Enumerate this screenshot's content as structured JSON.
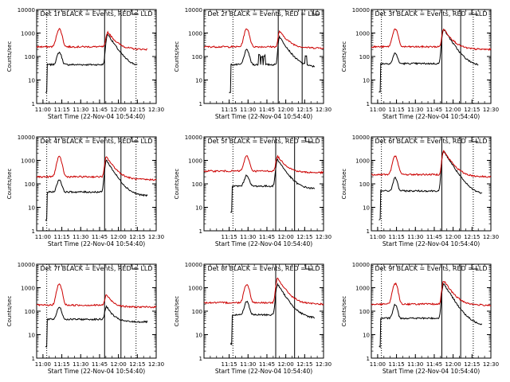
{
  "figure": {
    "background": "#ffffff",
    "axis_color": "#000000",
    "event_color": "#000000",
    "lld_color": "#cc0000"
  },
  "chart_data": [
    {
      "type": "line",
      "title": "Det 1f BLACK = Events, RED = LLD",
      "xlabel": "Start Time (22-Nov-04 10:54:40)",
      "ylabel": "Counts/sec",
      "xlim_min": [
        0,
        95
      ],
      "ylim": [
        1,
        10000
      ],
      "yscale": "log",
      "x_ticks": [
        {
          "label": "11:00",
          "v": 5
        },
        {
          "label": "11:15",
          "v": 20
        },
        {
          "label": "11:30",
          "v": 35
        },
        {
          "label": "11:45",
          "v": 50
        },
        {
          "label": "12:00",
          "v": 65
        },
        {
          "label": "12:15",
          "v": 80
        },
        {
          "label": "12:30",
          "v": 95
        }
      ],
      "y_ticks": [
        {
          "label": "1",
          "v": 1
        },
        {
          "label": "10",
          "v": 10
        },
        {
          "label": "100",
          "v": 100
        },
        {
          "label": "1000",
          "v": 1000
        },
        {
          "label": "10000",
          "v": 10000
        }
      ],
      "markers_min": {
        "dotted": [
          8,
          79
        ],
        "solid": [
          54,
          67
        ]
      },
      "series": [
        {
          "name": "Events",
          "color": "#000000",
          "start": 7,
          "end": 80,
          "base": 45,
          "tail": 35,
          "peak1": {
            "t": 18,
            "v": 150,
            "w": 2.2
          },
          "peak2": {
            "t": 56.5,
            "v": 900,
            "r": 1.5,
            "d": 5
          },
          "dropout": 3
        },
        {
          "name": "LLD",
          "color": "#cc0000",
          "start": 0,
          "end": 88,
          "base": 260,
          "tail": 200,
          "peak1": {
            "t": 18,
            "v": 1500,
            "w": 2.4
          },
          "peak2": {
            "t": 56.5,
            "v": 1100,
            "r": 1.5,
            "d": 5
          },
          "dropout": 0
        }
      ]
    },
    {
      "type": "line",
      "title": "Det 2f BLACK = Events, RED = LLD",
      "xlabel": "Start Time (22-Nov-04 10:54:40)",
      "ylabel": "Counts/sec",
      "xlim_min": [
        0,
        95
      ],
      "ylim": [
        1,
        10000
      ],
      "yscale": "log",
      "x_ticks": [
        {
          "label": "11:30",
          "v": 35
        },
        {
          "label": "11:45",
          "v": 50
        },
        {
          "label": "12:00",
          "v": 65
        },
        {
          "label": "12:15",
          "v": 80
        },
        {
          "label": "12:30",
          "v": 95
        },
        {
          "label": "11:15",
          "v": 20
        }
      ],
      "y_ticks": [
        {
          "label": "1",
          "v": 1
        },
        {
          "label": "10",
          "v": 10
        },
        {
          "label": "100",
          "v": 100
        },
        {
          "label": "1000",
          "v": 1000
        },
        {
          "label": "10000",
          "v": 10000
        }
      ],
      "markers_min": {
        "dotted": [
          23
        ],
        "solid": [
          59,
          78
        ]
      },
      "series": [
        {
          "name": "Events",
          "color": "#000000",
          "start": 20,
          "end": 88,
          "base": 45,
          "tail": 35,
          "peak1": {
            "t": 34,
            "v": 190,
            "w": 2.3
          },
          "peak2": {
            "t": 60,
            "v": 700,
            "r": 1.2,
            "d": 5
          },
          "dropout": 3,
          "spikes": [
            {
              "t": 44,
              "v": 120
            },
            {
              "t": 46,
              "v": 100
            },
            {
              "t": 48,
              "v": 110
            },
            {
              "t": 81,
              "v": 110
            }
          ]
        },
        {
          "name": "LLD",
          "color": "#cc0000",
          "start": 0,
          "end": 95,
          "base": 260,
          "tail": 230,
          "peak1": {
            "t": 34,
            "v": 1500,
            "w": 2.4
          },
          "peak2": {
            "t": 60,
            "v": 1200,
            "r": 1.2,
            "d": 5
          },
          "dropout": 0
        }
      ]
    },
    {
      "type": "line",
      "title": "Det 3f BLACK = Events, RED = LLD",
      "xlabel": "Start Time (22-Nov-04 10:54:40)",
      "ylabel": "Counts/sec",
      "xlim_min": [
        0,
        95
      ],
      "ylim": [
        1,
        10000
      ],
      "yscale": "log",
      "x_ticks": [
        {
          "label": "11:00",
          "v": 5
        },
        {
          "label": "11:15",
          "v": 20
        },
        {
          "label": "11:30",
          "v": 35
        },
        {
          "label": "11:45",
          "v": 50
        },
        {
          "label": "12:00",
          "v": 65
        },
        {
          "label": "12:15",
          "v": 80
        },
        {
          "label": "12:30",
          "v": 95
        }
      ],
      "y_ticks": [
        {
          "label": "1",
          "v": 1
        },
        {
          "label": "10",
          "v": 10
        },
        {
          "label": "100",
          "v": 100
        },
        {
          "label": "1000",
          "v": 1000
        },
        {
          "label": "10000",
          "v": 10000
        }
      ],
      "markers_min": {
        "dotted": [
          8,
          81
        ],
        "solid": [
          56,
          71
        ]
      },
      "series": [
        {
          "name": "Events",
          "color": "#000000",
          "start": 6,
          "end": 85,
          "base": 50,
          "tail": 40,
          "peak1": {
            "t": 19,
            "v": 140,
            "w": 2.0
          },
          "peak2": {
            "t": 57.5,
            "v": 1500,
            "r": 1.5,
            "d": 5
          },
          "dropout": 3
        },
        {
          "name": "LLD",
          "color": "#cc0000",
          "start": 0,
          "end": 95,
          "base": 260,
          "tail": 200,
          "peak1": {
            "t": 19,
            "v": 1500,
            "w": 2.4
          },
          "peak2": {
            "t": 57.5,
            "v": 1500,
            "r": 1.5,
            "d": 5
          },
          "dropout": 0
        }
      ]
    },
    {
      "type": "line",
      "title": "Det 4f BLACK = Events, RED = LLD",
      "xlabel": "Start Time (22-Nov-04 10:54:40)",
      "ylabel": "Counts/sec",
      "xlim_min": [
        0,
        95
      ],
      "ylim": [
        1,
        10000
      ],
      "yscale": "log",
      "x_ticks": [
        {
          "label": "11:00",
          "v": 5
        },
        {
          "label": "11:15",
          "v": 20
        },
        {
          "label": "11:30",
          "v": 35
        },
        {
          "label": "11:45",
          "v": 50
        },
        {
          "label": "12:00",
          "v": 65
        },
        {
          "label": "12:15",
          "v": 80
        },
        {
          "label": "12:30",
          "v": 95
        }
      ],
      "y_ticks": [
        {
          "label": "1",
          "v": 1
        },
        {
          "label": "10",
          "v": 10
        },
        {
          "label": "100",
          "v": 100
        },
        {
          "label": "1000",
          "v": 1000
        },
        {
          "label": "10000",
          "v": 10000
        }
      ],
      "markers_min": {
        "dotted": [
          8,
          79
        ],
        "solid": [
          54,
          67
        ]
      },
      "series": [
        {
          "name": "Events",
          "color": "#000000",
          "start": 7,
          "end": 88,
          "base": 45,
          "tail": 30,
          "peak1": {
            "t": 18,
            "v": 150,
            "w": 2.2
          },
          "peak2": {
            "t": 55.5,
            "v": 1000,
            "r": 1.5,
            "d": 5
          },
          "dropout": 3
        },
        {
          "name": "LLD",
          "color": "#cc0000",
          "start": 0,
          "end": 95,
          "base": 200,
          "tail": 150,
          "peak1": {
            "t": 18,
            "v": 1400,
            "w": 2.4
          },
          "peak2": {
            "t": 55.5,
            "v": 1400,
            "r": 1.5,
            "d": 5
          },
          "dropout": 0
        }
      ]
    },
    {
      "type": "line",
      "title": "Det 5f BLACK = Events, RED = LLD",
      "xlabel": "Start Time (22-Nov-04 10:54:40)",
      "ylabel": "Counts/sec",
      "xlim_min": [
        0,
        95
      ],
      "ylim": [
        1,
        10000
      ],
      "yscale": "log",
      "x_ticks": [
        {
          "label": "11:30",
          "v": 35
        },
        {
          "label": "11:45",
          "v": 50
        },
        {
          "label": "12:00",
          "v": 65
        },
        {
          "label": "12:15",
          "v": 80
        },
        {
          "label": "12:30",
          "v": 95
        },
        {
          "label": "11:15",
          "v": 20
        }
      ],
      "y_ticks": [
        {
          "label": "1",
          "v": 1
        },
        {
          "label": "10",
          "v": 10
        },
        {
          "label": "100",
          "v": 100
        },
        {
          "label": "1000",
          "v": 1000
        },
        {
          "label": "10000",
          "v": 10000
        }
      ],
      "markers_min": {
        "dotted": [
          23
        ],
        "solid": [
          57,
          72
        ]
      },
      "series": [
        {
          "name": "Events",
          "color": "#000000",
          "start": 21,
          "end": 88,
          "base": 80,
          "tail": 60,
          "peak1": {
            "t": 34,
            "v": 230,
            "w": 2.2
          },
          "peak2": {
            "t": 58.5,
            "v": 1100,
            "r": 1.5,
            "d": 5
          },
          "dropout": 6
        },
        {
          "name": "LLD",
          "color": "#cc0000",
          "start": 0,
          "end": 95,
          "base": 350,
          "tail": 300,
          "peak1": {
            "t": 34,
            "v": 1500,
            "w": 2.4
          },
          "peak2": {
            "t": 58.5,
            "v": 1500,
            "r": 1.5,
            "d": 5
          },
          "dropout": 0
        }
      ]
    },
    {
      "type": "line",
      "title": "Det 6f BLACK = Events, RED = LLD",
      "xlabel": "Start Time (22-Nov-04 10:54:40)",
      "ylabel": "Counts/sec",
      "xlim_min": [
        0,
        95
      ],
      "ylim": [
        1,
        10000
      ],
      "yscale": "log",
      "x_ticks": [
        {
          "label": "11:00",
          "v": 5
        },
        {
          "label": "11:15",
          "v": 20
        },
        {
          "label": "11:30",
          "v": 35
        },
        {
          "label": "11:45",
          "v": 50
        },
        {
          "label": "12:00",
          "v": 65
        },
        {
          "label": "12:15",
          "v": 80
        },
        {
          "label": "12:30",
          "v": 95
        }
      ],
      "y_ticks": [
        {
          "label": "1",
          "v": 1
        },
        {
          "label": "10",
          "v": 10
        },
        {
          "label": "100",
          "v": 100
        },
        {
          "label": "1000",
          "v": 1000
        },
        {
          "label": "10000",
          "v": 10000
        }
      ],
      "markers_min": {
        "dotted": [
          8,
          81
        ],
        "solid": [
          56,
          71
        ]
      },
      "series": [
        {
          "name": "Events",
          "color": "#000000",
          "start": 6,
          "end": 88,
          "base": 50,
          "tail": 35,
          "peak1": {
            "t": 19,
            "v": 180,
            "w": 2.0
          },
          "peak2": {
            "t": 57.5,
            "v": 2500,
            "r": 1.5,
            "d": 5
          },
          "dropout": 3
        },
        {
          "name": "LLD",
          "color": "#cc0000",
          "start": 0,
          "end": 95,
          "base": 250,
          "tail": 200,
          "peak1": {
            "t": 19,
            "v": 1500,
            "w": 2.4
          },
          "peak2": {
            "t": 57.5,
            "v": 2500,
            "r": 1.5,
            "d": 5
          },
          "dropout": 0
        }
      ]
    },
    {
      "type": "line",
      "title": "Det 7f BLACK = Events, RED = LLD",
      "xlabel": "Start Time (22-Nov-04 10:54:40)",
      "ylabel": "Counts/sec",
      "xlim_min": [
        0,
        95
      ],
      "ylim": [
        1,
        10000
      ],
      "yscale": "log",
      "x_ticks": [
        {
          "label": "11:00",
          "v": 5
        },
        {
          "label": "11:15",
          "v": 20
        },
        {
          "label": "11:30",
          "v": 35
        },
        {
          "label": "11:45",
          "v": 50
        },
        {
          "label": "12:00",
          "v": 65
        },
        {
          "label": "12:15",
          "v": 80
        },
        {
          "label": "12:30",
          "v": 95
        }
      ],
      "y_ticks": [
        {
          "label": "1",
          "v": 1
        },
        {
          "label": "10",
          "v": 10
        },
        {
          "label": "100",
          "v": 100
        },
        {
          "label": "1000",
          "v": 1000
        },
        {
          "label": "10000",
          "v": 10000
        }
      ],
      "markers_min": {
        "dotted": [
          8,
          79
        ],
        "solid": [
          54,
          67
        ]
      },
      "series": [
        {
          "name": "Events",
          "color": "#000000",
          "start": 7,
          "end": 88,
          "base": 45,
          "tail": 35,
          "peak1": {
            "t": 18,
            "v": 150,
            "w": 2.2
          },
          "peak2": {
            "t": 55.5,
            "v": 160,
            "r": 1.5,
            "d": 4
          },
          "dropout": 3
        },
        {
          "name": "LLD",
          "color": "#cc0000",
          "start": 0,
          "end": 95,
          "base": 180,
          "tail": 150,
          "peak1": {
            "t": 18,
            "v": 1400,
            "w": 2.4
          },
          "peak2": {
            "t": 55.5,
            "v": 500,
            "r": 1.5,
            "d": 4
          },
          "dropout": 0
        }
      ]
    },
    {
      "type": "line",
      "title": "Det 8f BLACK = Events, RED = LLD",
      "xlabel": "Start Time (22-Nov-04 10:54:40)",
      "ylabel": "Counts/sec",
      "xlim_min": [
        0,
        95
      ],
      "ylim": [
        1,
        10000
      ],
      "yscale": "log",
      "x_ticks": [
        {
          "label": "11:30",
          "v": 35
        },
        {
          "label": "11:45",
          "v": 50
        },
        {
          "label": "12:00",
          "v": 65
        },
        {
          "label": "12:15",
          "v": 80
        },
        {
          "label": "12:30",
          "v": 95
        },
        {
          "label": "11:15",
          "v": 20
        }
      ],
      "y_ticks": [
        {
          "label": "1",
          "v": 1
        },
        {
          "label": "10",
          "v": 10
        },
        {
          "label": "100",
          "v": 100
        },
        {
          "label": "1000",
          "v": 1000
        },
        {
          "label": "10000",
          "v": 10000
        }
      ],
      "markers_min": {
        "dotted": [
          23
        ],
        "solid": [
          57,
          72
        ]
      },
      "series": [
        {
          "name": "Events",
          "color": "#000000",
          "start": 21,
          "end": 88,
          "base": 70,
          "tail": 50,
          "peak1": {
            "t": 34,
            "v": 260,
            "w": 2.2
          },
          "peak2": {
            "t": 58.5,
            "v": 1400,
            "r": 1.5,
            "d": 5
          },
          "dropout": 4
        },
        {
          "name": "LLD",
          "color": "#cc0000",
          "start": 0,
          "end": 95,
          "base": 230,
          "tail": 200,
          "peak1": {
            "t": 34,
            "v": 1400,
            "w": 2.4
          },
          "peak2": {
            "t": 58.5,
            "v": 2500,
            "r": 1.5,
            "d": 5
          },
          "dropout": 0
        }
      ]
    },
    {
      "type": "line",
      "title": "Det 9f BLACK = Events, RED = LLD",
      "xlabel": "Start Time (22-Nov-04 10:54:40)",
      "ylabel": "Counts/sec",
      "xlim_min": [
        0,
        95
      ],
      "ylim": [
        1,
        10000
      ],
      "yscale": "log",
      "x_ticks": [
        {
          "label": "11:00",
          "v": 5
        },
        {
          "label": "11:15",
          "v": 20
        },
        {
          "label": "11:30",
          "v": 35
        },
        {
          "label": "11:45",
          "v": 50
        },
        {
          "label": "12:00",
          "v": 65
        },
        {
          "label": "12:15",
          "v": 80
        },
        {
          "label": "12:30",
          "v": 95
        }
      ],
      "y_ticks": [
        {
          "label": "1",
          "v": 1
        },
        {
          "label": "10",
          "v": 10
        },
        {
          "label": "100",
          "v": 100
        },
        {
          "label": "1000",
          "v": 1000
        },
        {
          "label": "10000",
          "v": 10000
        }
      ],
      "markers_min": {
        "dotted": [
          8,
          81
        ],
        "solid": [
          56,
          71
        ]
      },
      "series": [
        {
          "name": "Events",
          "color": "#000000",
          "start": 6,
          "end": 88,
          "base": 50,
          "tail": 25,
          "peak1": {
            "t": 19,
            "v": 190,
            "w": 2.0
          },
          "peak2": {
            "t": 57.5,
            "v": 1500,
            "r": 1.5,
            "d": 5
          },
          "dropout": 3
        },
        {
          "name": "LLD",
          "color": "#cc0000",
          "start": 0,
          "end": 95,
          "base": 200,
          "tail": 180,
          "peak1": {
            "t": 19,
            "v": 1500,
            "w": 2.4
          },
          "peak2": {
            "t": 57.5,
            "v": 2000,
            "r": 1.5,
            "d": 5
          },
          "dropout": 0
        }
      ]
    }
  ]
}
